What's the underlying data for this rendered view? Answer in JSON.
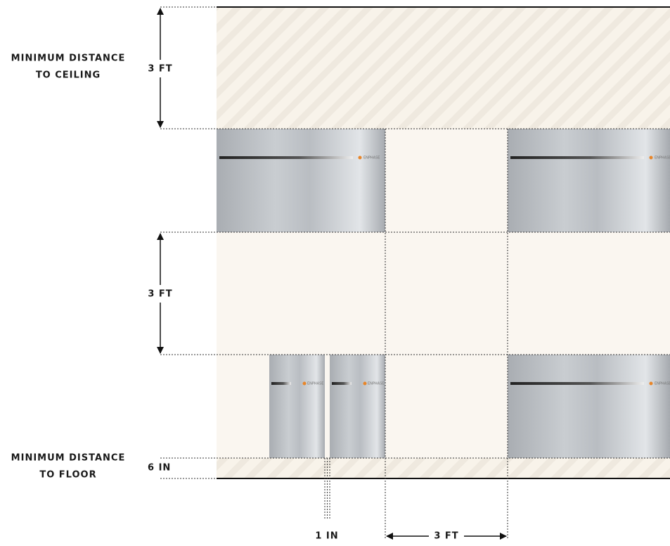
{
  "ceiling_label": [
    "MINIMUM DISTANCE",
    "TO CEILING"
  ],
  "floor_label": [
    "MINIMUM DISTANCE",
    "TO FLOOR"
  ],
  "dimensions": {
    "ceiling_gap": "3 FT",
    "vertical_gap": "3 FT",
    "floor_gap": "6 IN",
    "side_gap": "1 IN",
    "horizontal_gap": "3 FT"
  },
  "brand": "ENPHASE"
}
